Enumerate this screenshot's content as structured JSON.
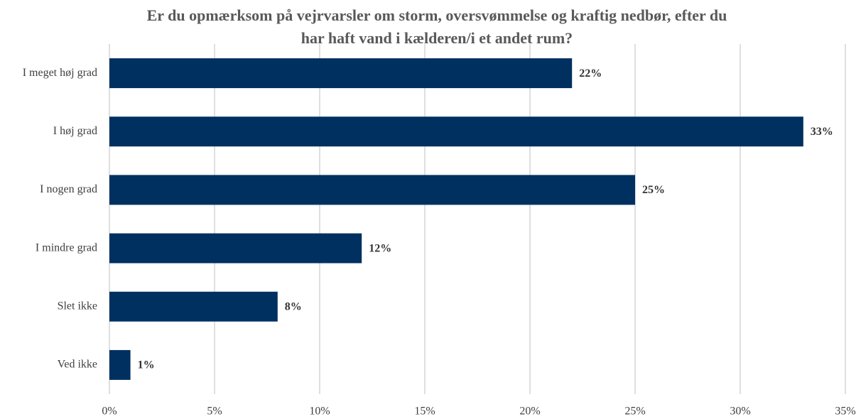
{
  "chart_data": {
    "type": "hbar",
    "title": [
      "Er du opmærksom på vejrvarsler om storm, oversvømmelse og kraftig nedbør, efter du",
      "har haft vand i kælderen/i et andet rum?"
    ],
    "categories": [
      "I meget høj grad",
      "I høj grad",
      "I nogen grad",
      "I mindre grad",
      "Slet ikke",
      "Ved ikke"
    ],
    "values": [
      22,
      33,
      25,
      12,
      8,
      1
    ],
    "value_labels": [
      "22%",
      "33%",
      "25%",
      "12%",
      "8%",
      "1%"
    ],
    "color": "#003060",
    "xlim": [
      0,
      35
    ],
    "xticks": [
      {
        "value": 0,
        "label": "0%"
      },
      {
        "value": 5,
        "label": "5%"
      },
      {
        "value": 10,
        "label": "10%"
      },
      {
        "value": 15,
        "label": "15%"
      },
      {
        "value": 20,
        "label": "20%"
      },
      {
        "value": 25,
        "label": "25%"
      },
      {
        "value": 30,
        "label": "30%"
      },
      {
        "value": 35,
        "label": "35%"
      }
    ],
    "grid": true
  }
}
